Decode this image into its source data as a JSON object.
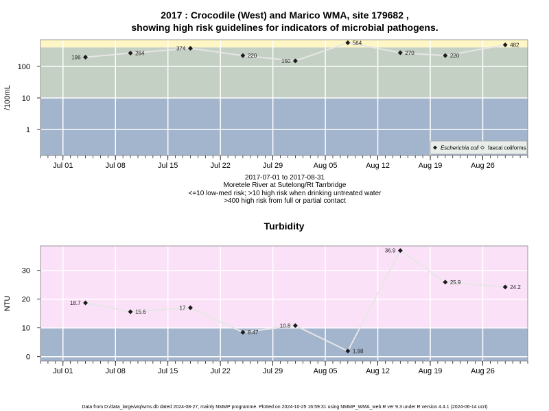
{
  "header": {
    "title_line1": "2017 : Crocodile (West) and Marico WMA, site 179682 ,",
    "title_line2": "showing high risk guidelines for indicators of microbial pathogens."
  },
  "notes": {
    "line1": "2017-07-01 to 2017-08-31",
    "line2": "Moretele River at Sutelong/Rt Tarrbridge",
    "line3": "<=10 low-med risk; >10 high risk when drinking untreated water",
    "line4": ">400 high risk from full or partial contact"
  },
  "footer": "Data from D:/data_large/wq/wms.db dated 2024-08-27, mainly NMMP programme. Plotted on 2024-10-25 16:59:31 using NMMP_WMA_web.R ver 9.3 under R version 4.4.1 (2024-06-14 ucrt)",
  "colors": {
    "panel_bg": "#c5d0c4",
    "band_low": "#a3b4cd",
    "band_high": "#fff6c6",
    "turb_high": "#fbe1f8",
    "line": "#e6e6e6",
    "grid": "#ffffff"
  },
  "chart_data": [
    {
      "type": "line",
      "title": "",
      "xlabel": "",
      "ylabel": "/100mL",
      "y_scale": "log",
      "ylim": [
        0.15,
        700
      ],
      "xlim": [
        "2017-06-28",
        "2017-09-01"
      ],
      "x_ticks": [
        "2017-07-01",
        "2017-07-08",
        "2017-07-15",
        "2017-07-22",
        "2017-07-29",
        "2017-08-05",
        "2017-08-12",
        "2017-08-19",
        "2017-08-26"
      ],
      "x_tick_labels": [
        "Jul 01",
        "Jul 08",
        "Jul 15",
        "Jul 22",
        "Jul 29",
        "Aug 05",
        "Aug 12",
        "Aug 19",
        "Aug 26"
      ],
      "y_ticks": [
        1,
        10,
        100
      ],
      "y_tick_labels": [
        "1",
        "10",
        "100"
      ],
      "bands": [
        {
          "from": 0.15,
          "to": 10,
          "color": "#a3b4cd"
        },
        {
          "from": 10,
          "to": 400,
          "color": "#c5d0c4"
        },
        {
          "from": 400,
          "to": 700,
          "color": "#fff6c6"
        }
      ],
      "grid": true,
      "legend_position": "bottom-right",
      "legend": [
        {
          "label": "Escherichia coli",
          "marker": "filled-diamond"
        },
        {
          "label": "faecal coliforms",
          "marker": "open-diamond"
        }
      ],
      "series": [
        {
          "name": "Escherichia coli",
          "x": [
            "2017-07-04",
            "2017-07-10",
            "2017-07-18",
            "2017-07-25",
            "2017-08-01",
            "2017-08-08",
            "2017-08-15",
            "2017-08-21",
            "2017-08-29"
          ],
          "values": [
            196,
            264,
            374,
            220,
            150,
            564,
            270,
            220,
            482
          ],
          "labels": [
            "196",
            "264",
            "374",
            "220",
            "150",
            "564",
            "270",
            "220",
            "482"
          ]
        }
      ]
    },
    {
      "type": "line",
      "title": "Turbidity",
      "xlabel": "",
      "ylabel": "NTU",
      "y_scale": "linear",
      "ylim": [
        -1.5,
        38.5
      ],
      "xlim": [
        "2017-06-28",
        "2017-09-01"
      ],
      "x_ticks": [
        "2017-07-01",
        "2017-07-08",
        "2017-07-15",
        "2017-07-22",
        "2017-07-29",
        "2017-08-05",
        "2017-08-12",
        "2017-08-19",
        "2017-08-26"
      ],
      "x_tick_labels": [
        "Jul 01",
        "Jul 08",
        "Jul 15",
        "Jul 22",
        "Jul 29",
        "Aug 05",
        "Aug 12",
        "Aug 19",
        "Aug 26"
      ],
      "y_ticks": [
        0,
        10,
        20,
        30
      ],
      "y_tick_labels": [
        "0",
        "10",
        "20",
        "30"
      ],
      "bands": [
        {
          "from": -1.5,
          "to": 10,
          "color": "#a3b4cd"
        },
        {
          "from": 10,
          "to": 38.5,
          "color": "#fbe1f8"
        }
      ],
      "grid": true,
      "series": [
        {
          "name": "",
          "x": [
            "2017-07-04",
            "2017-07-10",
            "2017-07-18",
            "2017-07-25",
            "2017-08-01",
            "2017-08-08",
            "2017-08-15",
            "2017-08-21",
            "2017-08-29"
          ],
          "values": [
            18.7,
            15.6,
            17,
            8.47,
            10.8,
            1.98,
            36.9,
            25.9,
            24.2
          ],
          "labels": [
            "18.7",
            "15.6",
            "17",
            "8.47",
            "10.8",
            "1.98",
            "36.9",
            "25.9",
            "24.2"
          ]
        }
      ]
    }
  ]
}
